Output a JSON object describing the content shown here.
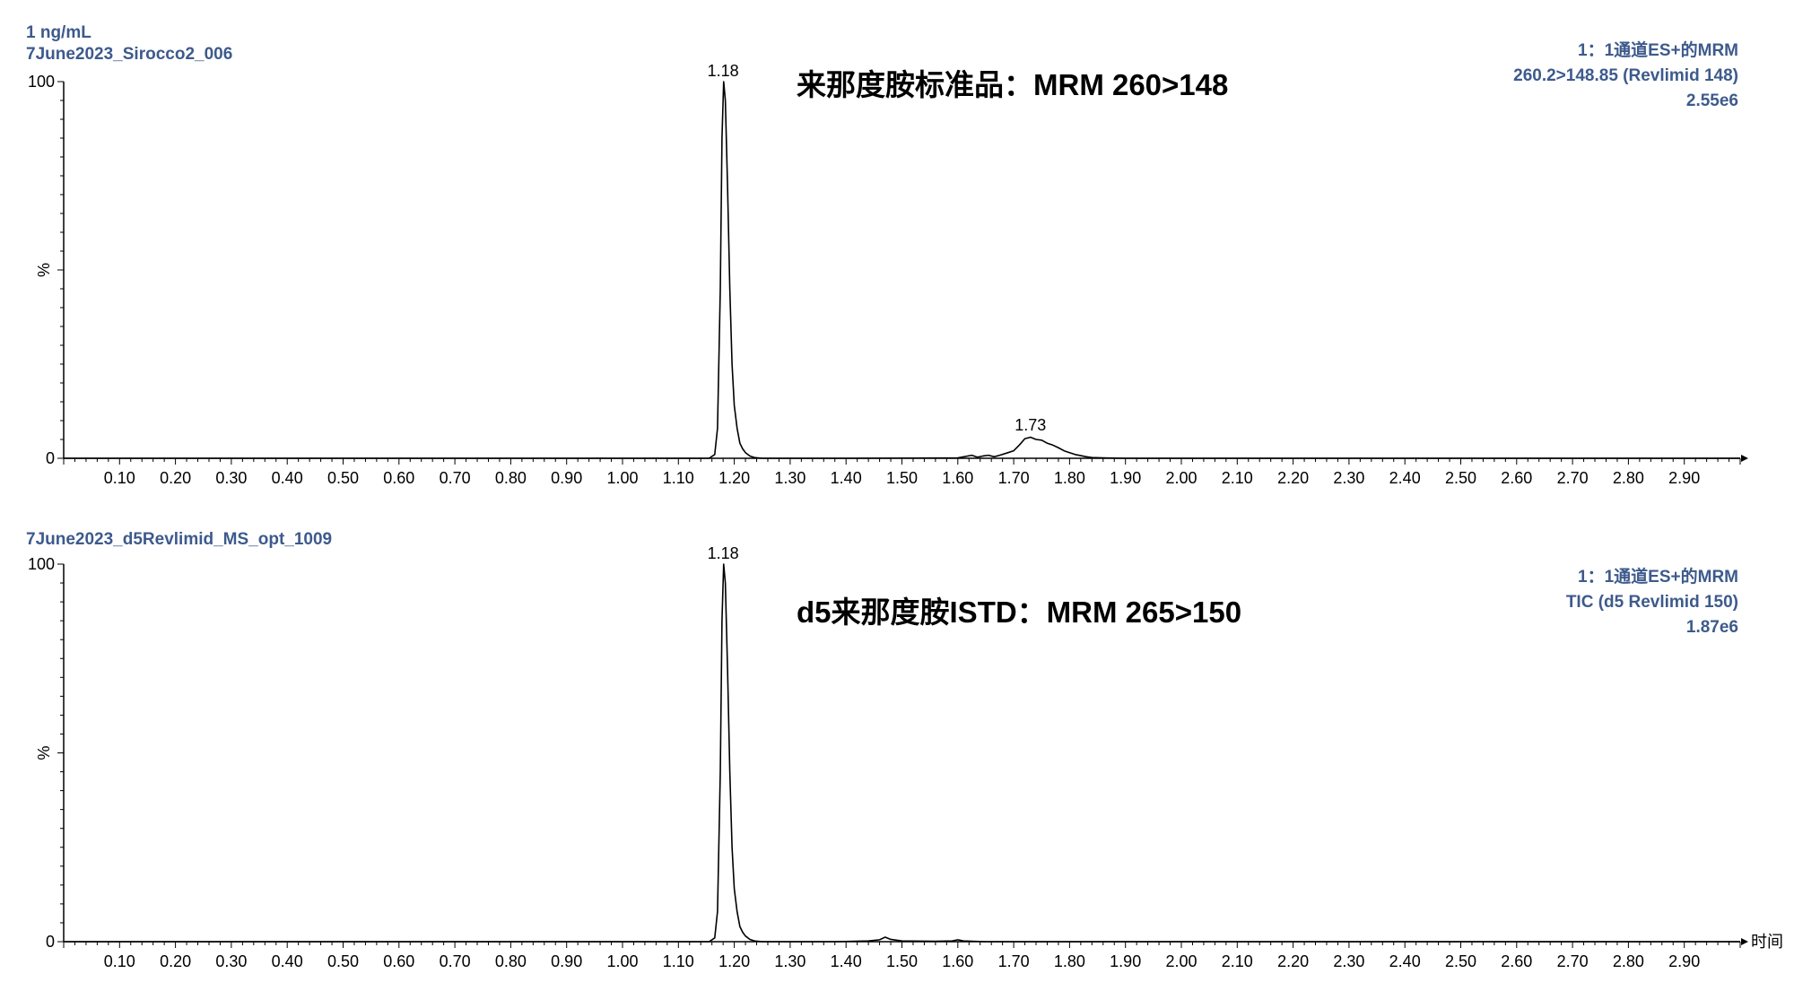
{
  "chart_data": [
    {
      "type": "line",
      "sample_label": "1 ng/mL",
      "file_label": "7June2023_Sirocco2_006",
      "title": "来那度胺标准品：MRM 260>148",
      "channel_line1": "1：1通道ES+的MRM",
      "channel_line2": "260.2>148.85 (Revlimid 148)",
      "intensity": "2.55e6",
      "ylabel": "%",
      "xlabel": "",
      "xlim": [
        0.0,
        3.0
      ],
      "ylim": [
        0,
        100
      ],
      "y_tick_labels": [
        "0",
        "100"
      ],
      "x_tick_labels": [
        "0.10",
        "0.20",
        "0.30",
        "0.40",
        "0.50",
        "0.60",
        "0.70",
        "0.80",
        "0.90",
        "1.00",
        "1.10",
        "1.20",
        "1.30",
        "1.40",
        "1.50",
        "1.60",
        "1.70",
        "1.80",
        "1.90",
        "2.00",
        "2.10",
        "2.20",
        "2.30",
        "2.40",
        "2.50",
        "2.60",
        "2.70",
        "2.80",
        "2.90"
      ],
      "peak_labels": [
        {
          "text": "1.18",
          "x": 1.18,
          "y": 100
        },
        {
          "text": "1.73",
          "x": 1.73,
          "y": 6
        }
      ],
      "series": [
        {
          "x": [
            0.0,
            1.155,
            1.165,
            1.17,
            1.175,
            1.178,
            1.181,
            1.184,
            1.188,
            1.192,
            1.196,
            1.2,
            1.205,
            1.21,
            1.215,
            1.22,
            1.228,
            1.236,
            1.25,
            1.4,
            1.6,
            1.625,
            1.635,
            1.645,
            1.655,
            1.665,
            1.675,
            1.69,
            1.7,
            1.71,
            1.72,
            1.73,
            1.74,
            1.75,
            1.76,
            1.77,
            1.78,
            1.79,
            1.8,
            1.81,
            1.82,
            1.83,
            1.84,
            1.86,
            1.9,
            3.0
          ],
          "y": [
            0,
            0,
            1,
            8,
            45,
            85,
            100,
            95,
            72,
            45,
            25,
            14,
            8,
            4,
            2.5,
            1.5,
            0.6,
            0.2,
            0,
            0,
            0.1,
            0.8,
            0.3,
            0.6,
            0.8,
            0.4,
            0.8,
            1.5,
            2.0,
            3.5,
            5.2,
            5.6,
            5.0,
            4.8,
            4.0,
            3.5,
            2.8,
            2.0,
            1.5,
            1.0,
            0.7,
            0.4,
            0.2,
            0.1,
            0,
            0
          ]
        }
      ]
    },
    {
      "type": "line",
      "file_label": "7June2023_d5Revlimid_MS_opt_1009",
      "title": "d5来那度胺ISTD：MRM 265>150",
      "channel_line1": "1：1通道ES+的MRM",
      "channel_line2": "TIC (d5 Revlimid 150)",
      "intensity": "1.87e6",
      "ylabel": "%",
      "xlabel": "时间",
      "xlim": [
        0.0,
        3.0
      ],
      "ylim": [
        0,
        100
      ],
      "y_tick_labels": [
        "0",
        "100"
      ],
      "x_tick_labels": [
        "0.10",
        "0.20",
        "0.30",
        "0.40",
        "0.50",
        "0.60",
        "0.70",
        "0.80",
        "0.90",
        "1.00",
        "1.10",
        "1.20",
        "1.30",
        "1.40",
        "1.50",
        "1.60",
        "1.70",
        "1.80",
        "1.90",
        "2.00",
        "2.10",
        "2.20",
        "2.30",
        "2.40",
        "2.50",
        "2.60",
        "2.70",
        "2.80",
        "2.90"
      ],
      "peak_labels": [
        {
          "text": "1.18",
          "x": 1.18,
          "y": 100
        }
      ],
      "series": [
        {
          "x": [
            0.0,
            1.155,
            1.165,
            1.17,
            1.175,
            1.178,
            1.181,
            1.184,
            1.188,
            1.192,
            1.196,
            1.2,
            1.205,
            1.21,
            1.215,
            1.22,
            1.228,
            1.236,
            1.25,
            1.38,
            1.44,
            1.46,
            1.47,
            1.48,
            1.5,
            1.56,
            1.59,
            1.6,
            1.61,
            1.65,
            3.0
          ],
          "y": [
            0,
            0,
            1,
            8,
            45,
            85,
            100,
            95,
            72,
            45,
            25,
            14,
            8,
            4,
            2.5,
            1.5,
            0.6,
            0.2,
            0,
            0,
            0.2,
            0.5,
            1.2,
            0.6,
            0.2,
            0.1,
            0.2,
            0.5,
            0.2,
            0,
            0
          ]
        }
      ]
    }
  ]
}
